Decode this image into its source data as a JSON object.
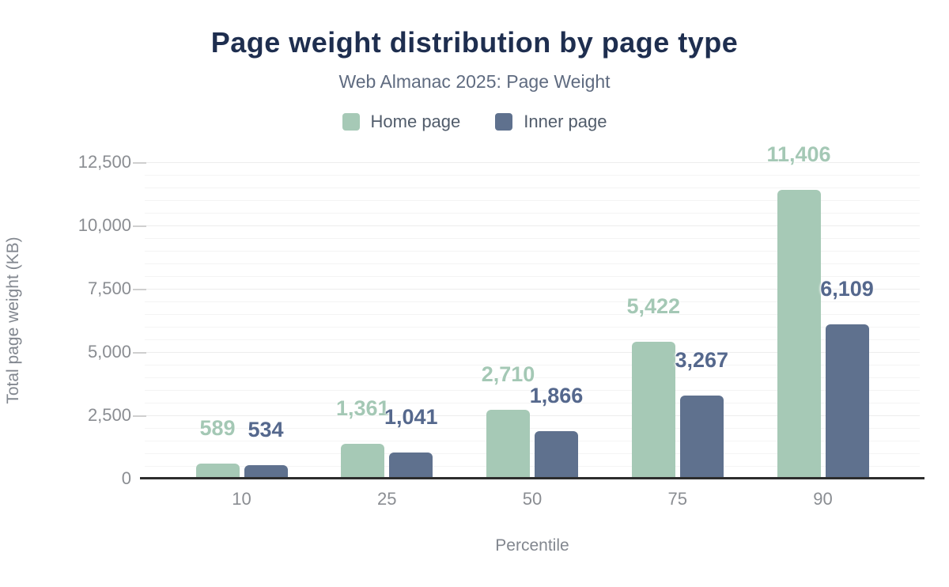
{
  "header": {
    "title": "Page weight distribution by page type",
    "subtitle": "Web Almanac 2025: Page Weight"
  },
  "chart_data": {
    "type": "bar",
    "title": "Page weight distribution by page type",
    "subtitle": "Web Almanac 2025: Page Weight",
    "xlabel": "Percentile",
    "ylabel": "Total page weight (KB)",
    "categories": [
      "10",
      "25",
      "50",
      "75",
      "90"
    ],
    "series": [
      {
        "name": "Home page",
        "color": "#a6c9b6",
        "label_color": "#a4c8b5",
        "values": [
          589,
          1361,
          2710,
          5422,
          11406
        ],
        "value_labels": [
          "589",
          "1,361",
          "2,710",
          "5,422",
          "11,406"
        ]
      },
      {
        "name": "Inner page",
        "color": "#5f718e",
        "label_color": "#55688d",
        "values": [
          534,
          1041,
          1866,
          3267,
          6109
        ],
        "value_labels": [
          "534",
          "1,041",
          "1,866",
          "3,267",
          "6,109"
        ]
      }
    ],
    "ylim": [
      0,
      12500
    ],
    "y_major_step": 2500,
    "y_minor_step": 500,
    "yticks": [
      {
        "value": 0,
        "label": "0"
      },
      {
        "value": 2500,
        "label": "2,500"
      },
      {
        "value": 5000,
        "label": "5,000"
      },
      {
        "value": 7500,
        "label": "7,500"
      },
      {
        "value": 10000,
        "label": "10,000"
      },
      {
        "value": 12500,
        "label": "12,500"
      }
    ],
    "legend_position": "top-center",
    "grid": true
  }
}
